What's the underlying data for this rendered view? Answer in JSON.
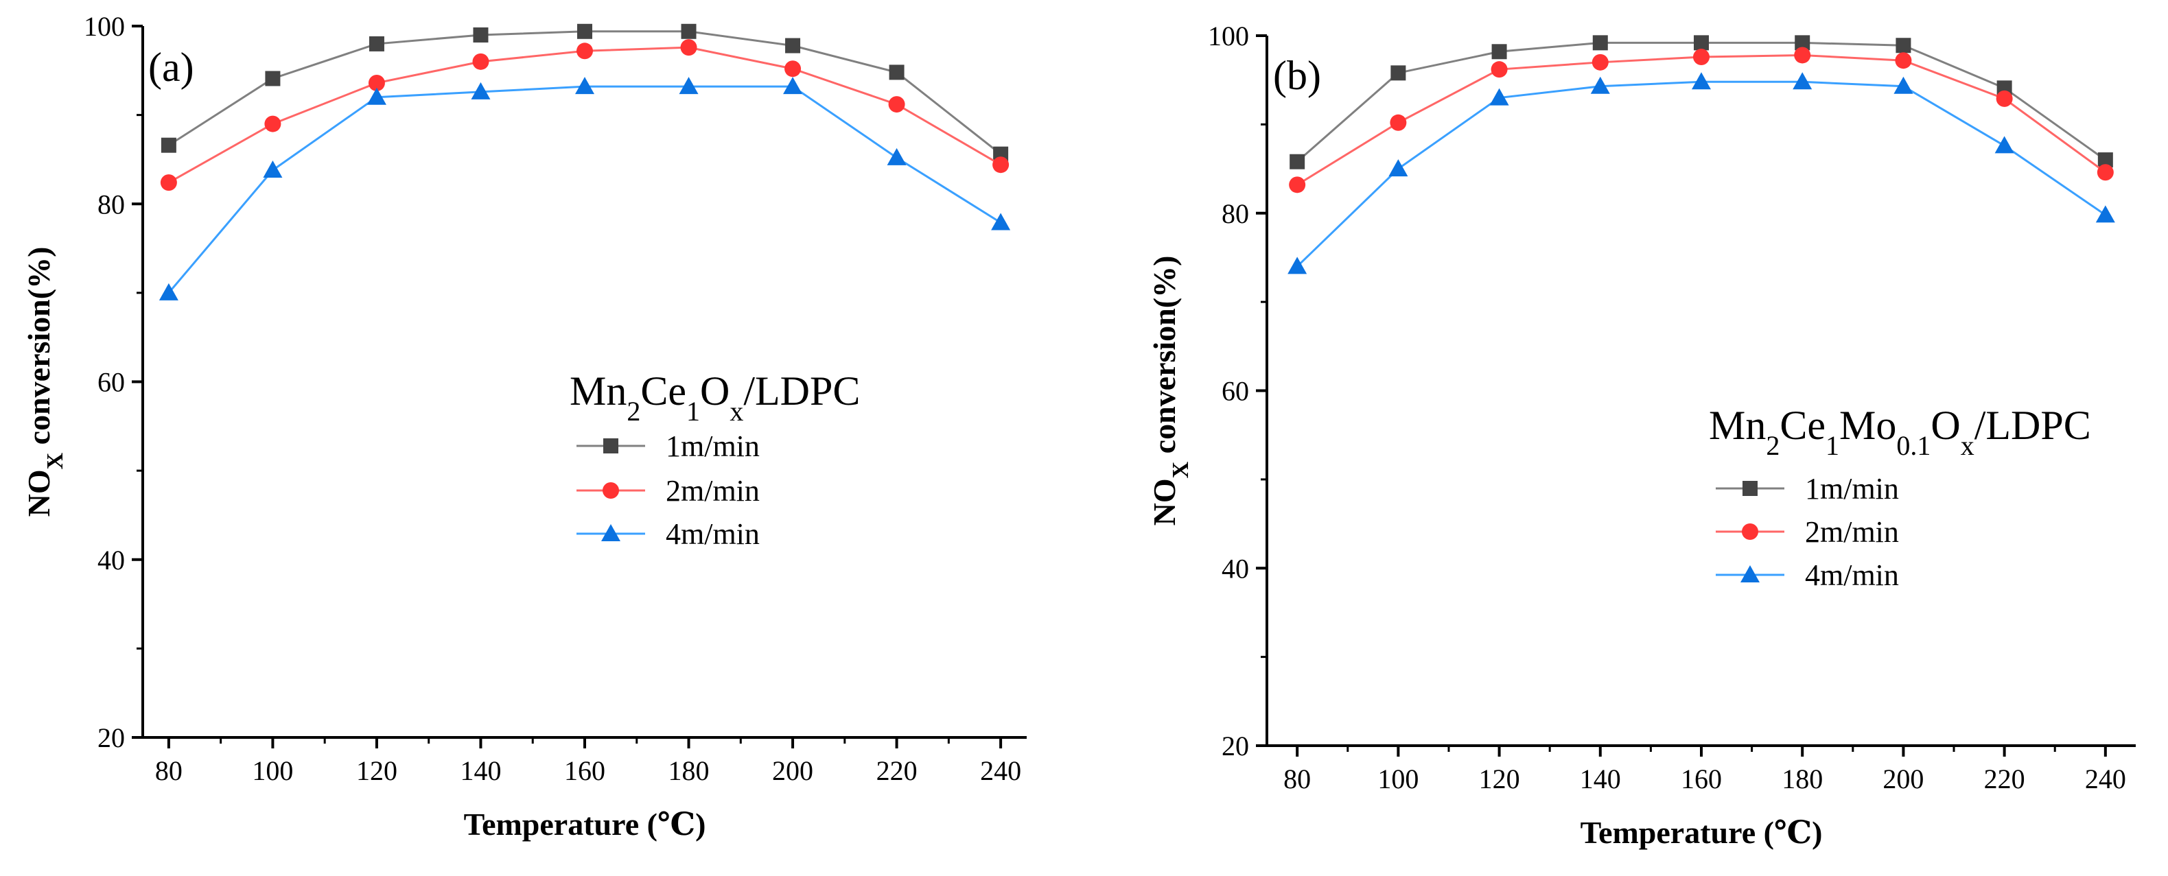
{
  "colors": {
    "series_1m_line": "#808080",
    "series_1m_marker": "#444444",
    "series_2m_line": "#ff6666",
    "series_2m_marker": "#ff3333",
    "series_4m_line": "#3aa0ff",
    "series_4m_marker": "#0b72e0",
    "axis": "#000000"
  },
  "chart_data": [
    {
      "type": "line",
      "panel_label": "(a)",
      "legend_title": {
        "base1": "Mn",
        "sub1": "2",
        "base2": "Ce",
        "sub2": "1",
        "base3": "O",
        "sub3": "x",
        "base4": "/LDPC"
      },
      "legend_placement": "center",
      "xlabel": "Temperature (℃)",
      "ylabel": {
        "base": "NO",
        "sub": "X",
        "rest": " conversion(%)"
      },
      "xlim": [
        75,
        245
      ],
      "ylim": [
        20,
        100
      ],
      "xticks": [
        80,
        100,
        120,
        140,
        160,
        180,
        200,
        220,
        240
      ],
      "yticks": [
        20,
        40,
        60,
        80,
        100
      ],
      "x": [
        80,
        100,
        120,
        140,
        160,
        180,
        200,
        220,
        240
      ],
      "series": [
        {
          "name": "1m/min",
          "marker": "square",
          "values": [
            86.6,
            94.1,
            98.0,
            99.0,
            99.4,
            99.4,
            97.8,
            94.8,
            85.6
          ]
        },
        {
          "name": "2m/min",
          "marker": "circle",
          "values": [
            82.4,
            89.0,
            93.6,
            96.0,
            97.2,
            97.6,
            95.2,
            91.2,
            84.4
          ]
        },
        {
          "name": "4m/min",
          "marker": "triangle",
          "values": [
            70.0,
            83.8,
            92.0,
            92.6,
            93.2,
            93.2,
            93.2,
            85.2,
            77.9
          ]
        }
      ]
    },
    {
      "type": "line",
      "panel_label": "(b)",
      "legend_title": {
        "base1": "Mn",
        "sub1": "2",
        "base2": "Ce",
        "sub2": "1",
        "base3": "Mo",
        "sub3": "0.1",
        "base4": "O",
        "sub4": "x",
        "base5": "/LDPC"
      },
      "legend_placement": "center-right",
      "xlabel": "Temperature (℃)",
      "ylabel": {
        "base": "NO",
        "sub": "X",
        "rest": " conversion(%)"
      },
      "xlim": [
        74,
        246
      ],
      "ylim": [
        20,
        100
      ],
      "xticks": [
        80,
        100,
        120,
        140,
        160,
        180,
        200,
        220,
        240
      ],
      "yticks": [
        20,
        40,
        60,
        80,
        100
      ],
      "x": [
        80,
        100,
        120,
        140,
        160,
        180,
        200,
        220,
        240
      ],
      "series": [
        {
          "name": "1m/min",
          "marker": "square",
          "values": [
            85.8,
            95.8,
            98.2,
            99.2,
            99.2,
            99.2,
            98.9,
            94.1,
            86.0
          ]
        },
        {
          "name": "2m/min",
          "marker": "circle",
          "values": [
            83.2,
            90.2,
            96.2,
            97.0,
            97.6,
            97.8,
            97.2,
            92.9,
            84.6
          ]
        },
        {
          "name": "4m/min",
          "marker": "triangle",
          "values": [
            74.0,
            85.0,
            93.0,
            94.3,
            94.8,
            94.8,
            94.3,
            87.6,
            79.8
          ]
        }
      ]
    }
  ]
}
